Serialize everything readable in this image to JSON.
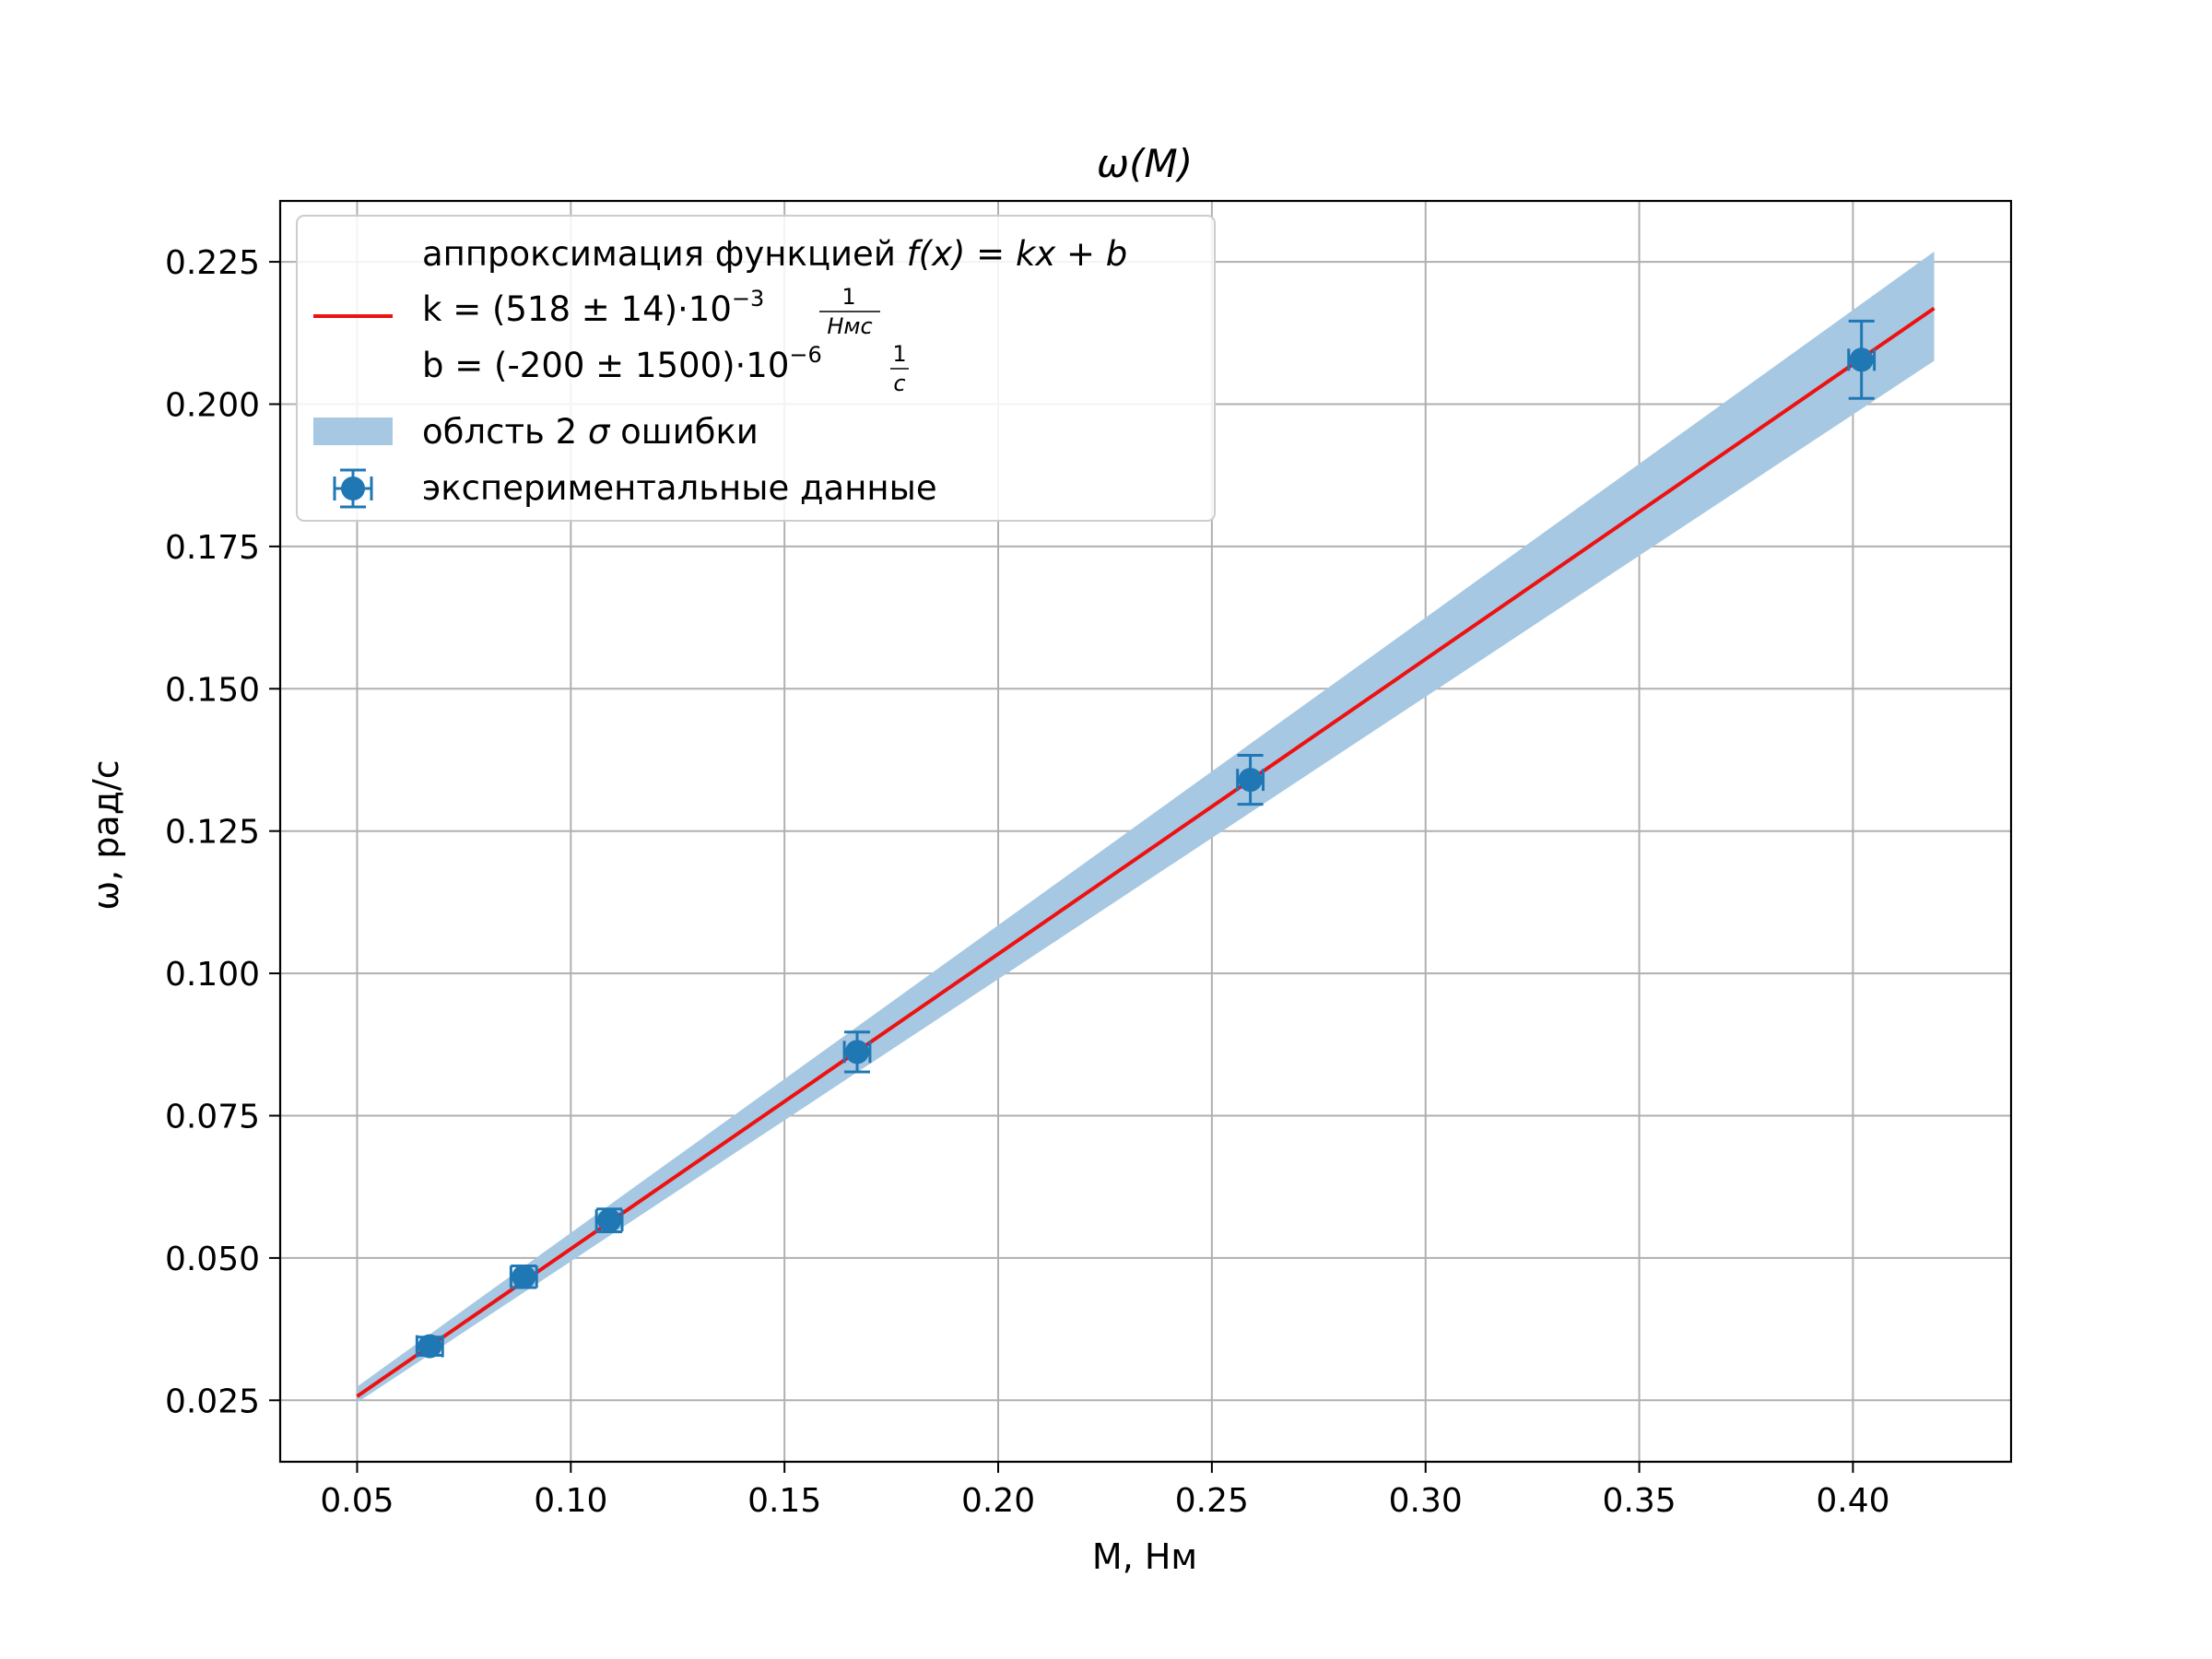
{
  "chart_data": {
    "type": "scatter",
    "title": "ω(M)",
    "xlabel": "M, Нм",
    "ylabel": "ω, рад/с",
    "xlim": [
      0.032,
      0.437
    ],
    "ylim": [
      0.0142,
      0.2357
    ],
    "x_ticks": [
      0.05,
      0.1,
      0.15,
      0.2,
      0.25,
      0.3,
      0.35,
      0.4
    ],
    "x_tick_labels": [
      "0.05",
      "0.10",
      "0.15",
      "0.20",
      "0.25",
      "0.30",
      "0.35",
      "0.40"
    ],
    "y_ticks": [
      0.025,
      0.05,
      0.075,
      0.1,
      0.125,
      0.15,
      0.175,
      0.2,
      0.225
    ],
    "y_tick_labels": [
      "0.025",
      "0.050",
      "0.075",
      "0.100",
      "0.125",
      "0.150",
      "0.175",
      "0.200",
      "0.225"
    ],
    "grid": true,
    "legend_position": "top-left",
    "colors": {
      "fit": "#ee1111",
      "band": "#a6c8e2",
      "points": "#1f77b4",
      "grid": "#b0b0b0"
    },
    "fit": {
      "name_line1_prefix": "аппроксимация функцией ",
      "name_line1_formula": "f(x) = kx + b",
      "k_text": "k = (518 ± 14)·10",
      "k_exp": "−3",
      "k_frac_num": "1",
      "k_frac_den": "Нмс",
      "b_text": "b = (-200 ± 1500)·10",
      "b_exp": "−6",
      "b_frac_num": "1",
      "b_frac_den": "с",
      "k": 0.518,
      "b": -0.0002,
      "x_start": 0.05,
      "x_end": 0.419
    },
    "band": {
      "name_prefix": "облсть 2 ",
      "name_sigma": "σ",
      "name_suffix": " ошибки",
      "x": [
        0.05,
        0.419
      ],
      "lower": [
        0.0246,
        0.2076
      ],
      "upper": [
        0.0274,
        0.2268
      ]
    },
    "points": {
      "name": "экспериментальные данные",
      "x": [
        0.067,
        0.089,
        0.109,
        0.167,
        0.259,
        0.402
      ],
      "y": [
        0.0345,
        0.0467,
        0.0566,
        0.0862,
        0.134,
        0.2078
      ],
      "y_err": [
        0.0016,
        0.0019,
        0.002,
        0.0035,
        0.0043,
        0.0068
      ],
      "x_err": [
        0.003,
        0.003,
        0.003,
        0.003,
        0.003,
        0.003
      ]
    }
  }
}
